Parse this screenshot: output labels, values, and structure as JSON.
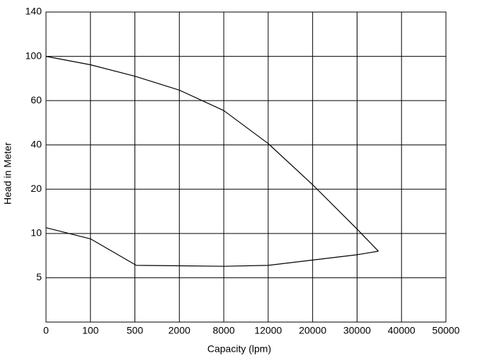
{
  "chart_data": {
    "type": "line",
    "xlabel": "Capacity (lpm)",
    "ylabel": "Head in Meter",
    "xlim": [
      0,
      50000
    ],
    "xticks": [
      0,
      100,
      500,
      2000,
      8000,
      12000,
      20000,
      30000,
      40000,
      50000
    ],
    "ylim": [
      0,
      140
    ],
    "yticks": [
      5,
      10,
      20,
      40,
      60,
      100,
      140
    ],
    "grid": true,
    "series": [
      {
        "color": "#000000",
        "x": [
          0,
          100,
          500,
          2000,
          8000,
          12000,
          20000,
          30000,
          34800
        ],
        "values": [
          100,
          92.4,
          82,
          69.5,
          55.5,
          40.6,
          22,
          11,
          8
        ]
      },
      {
        "color": "#000000",
        "x": [
          0,
          100,
          550,
          2000,
          8000,
          12000,
          20000,
          30000,
          34800
        ],
        "values": [
          11.3,
          9.4,
          6.4,
          6.35,
          6.3,
          6.4,
          7,
          7.6,
          8
        ]
      }
    ]
  }
}
